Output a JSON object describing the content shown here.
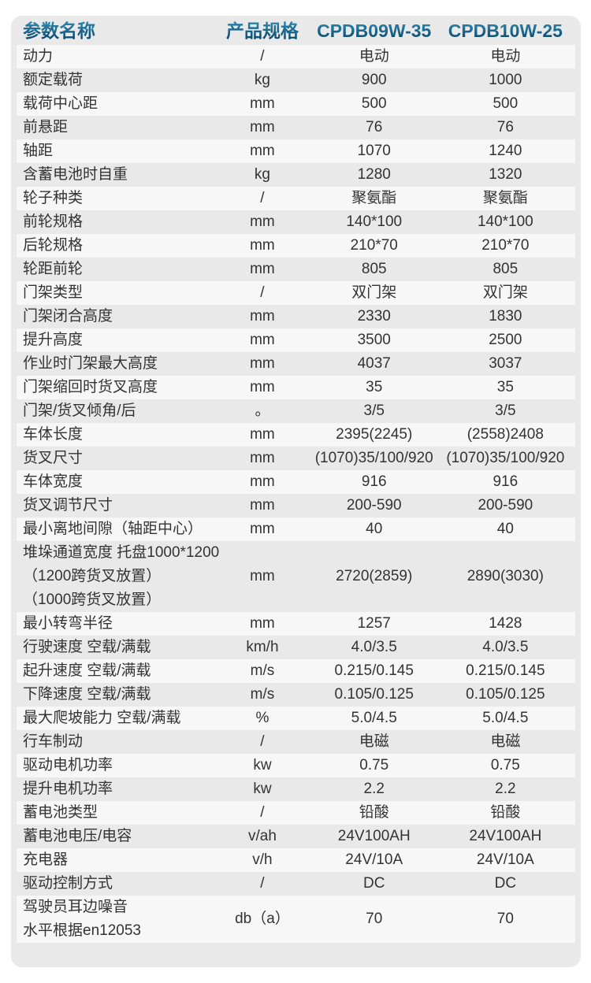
{
  "colors": {
    "card_background": "#e9e9e9",
    "row_stripe": "#f7f7f7",
    "body_text": "#333333",
    "header_text_gradient_top": "#2f8cb5",
    "header_text_gradient_bottom": "#0a4a6e"
  },
  "table": {
    "headers": [
      "参数名称",
      "产品规格",
      "CPDB09W-35",
      "CPDB10W-25"
    ],
    "rows": [
      {
        "name": "动力",
        "unit": "/",
        "v1": "电动",
        "v2": "电动"
      },
      {
        "name": "额定载荷",
        "unit": "kg",
        "v1": "900",
        "v2": "1000"
      },
      {
        "name": "载荷中心距",
        "unit": "mm",
        "v1": "500",
        "v2": "500"
      },
      {
        "name": "前悬距",
        "unit": "mm",
        "v1": "76",
        "v2": "76"
      },
      {
        "name": "轴距",
        "unit": "mm",
        "v1": "1070",
        "v2": "1240"
      },
      {
        "name": "含蓄电池时自重",
        "unit": "kg",
        "v1": "1280",
        "v2": "1320"
      },
      {
        "name": "轮子种类",
        "unit": "/",
        "v1": "聚氨酯",
        "v2": "聚氨酯"
      },
      {
        "name": "前轮规格",
        "unit": "mm",
        "v1": "140*100",
        "v2": "140*100"
      },
      {
        "name": "后轮规格",
        "unit": "mm",
        "v1": "210*70",
        "v2": "210*70"
      },
      {
        "name": "轮距前轮",
        "unit": "mm",
        "v1": "805",
        "v2": "805"
      },
      {
        "name": "门架类型",
        "unit": "/",
        "v1": "双门架",
        "v2": "双门架"
      },
      {
        "name": "门架闭合高度",
        "unit": "mm",
        "v1": "2330",
        "v2": "1830"
      },
      {
        "name": "提升高度",
        "unit": "mm",
        "v1": "3500",
        "v2": "2500"
      },
      {
        "name": "作业时门架最大高度",
        "unit": "mm",
        "v1": "4037",
        "v2": "3037"
      },
      {
        "name": "门架缩回时货叉高度",
        "unit": "mm",
        "v1": "35",
        "v2": "35"
      },
      {
        "name": "门架/货叉倾角/后",
        "unit": "。",
        "v1": "3/5",
        "v2": "3/5"
      },
      {
        "name": "车体长度",
        "unit": "mm",
        "v1": "2395(2245)",
        "v2": "(2558)2408"
      },
      {
        "name": "货叉尺寸",
        "unit": "mm",
        "v1": "(1070)35/100/920",
        "v2": "(1070)35/100/920"
      },
      {
        "name": "车体宽度",
        "unit": "mm",
        "v1": "916",
        "v2": "916"
      },
      {
        "name": "货叉调节尺寸",
        "unit": "mm",
        "v1": "200-590",
        "v2": "200-590"
      },
      {
        "name": "最小离地间隙（轴距中心）",
        "unit": "mm",
        "v1": "40",
        "v2": "40"
      },
      {
        "name": [
          "堆垛通道宽度 托盘1000*1200",
          "（1200跨货叉放置）",
          "（1000跨货叉放置）"
        ],
        "unit": "mm",
        "v1": "2720(2859)",
        "v2": "2890(3030)"
      },
      {
        "name": "最小转弯半径",
        "unit": "mm",
        "v1": "1257",
        "v2": "1428"
      },
      {
        "name": "行驶速度 空载/满载",
        "unit": "km/h",
        "v1": "4.0/3.5",
        "v2": "4.0/3.5"
      },
      {
        "name": "起升速度 空载/满载",
        "unit": "m/s",
        "v1": "0.215/0.145",
        "v2": "0.215/0.145"
      },
      {
        "name": "下降速度 空载/满载",
        "unit": "m/s",
        "v1": "0.105/0.125",
        "v2": "0.105/0.125"
      },
      {
        "name": "最大爬坡能力 空载/满载",
        "unit": "%",
        "v1": "5.0/4.5",
        "v2": "5.0/4.5"
      },
      {
        "name": "行车制动",
        "unit": "/",
        "v1": "电磁",
        "v2": "电磁"
      },
      {
        "name": "驱动电机功率",
        "unit": "kw",
        "v1": "0.75",
        "v2": "0.75"
      },
      {
        "name": "提升电机功率",
        "unit": "kw",
        "v1": "2.2",
        "v2": "2.2"
      },
      {
        "name": "蓄电池类型",
        "unit": "/",
        "v1": "铅酸",
        "v2": "铅酸"
      },
      {
        "name": "蓄电池电压/电容",
        "unit": "v/ah",
        "v1": "24V100AH",
        "v2": "24V100AH"
      },
      {
        "name": "充电器",
        "unit": "v/h",
        "v1": "24V/10A",
        "v2": "24V/10A"
      },
      {
        "name": "驱动控制方式",
        "unit": "/",
        "v1": "DC",
        "v2": "DC"
      },
      {
        "name": [
          "驾驶员耳边噪音",
          "水平根据en12053"
        ],
        "unit": "db（a）",
        "v1": "70",
        "v2": "70"
      }
    ]
  }
}
